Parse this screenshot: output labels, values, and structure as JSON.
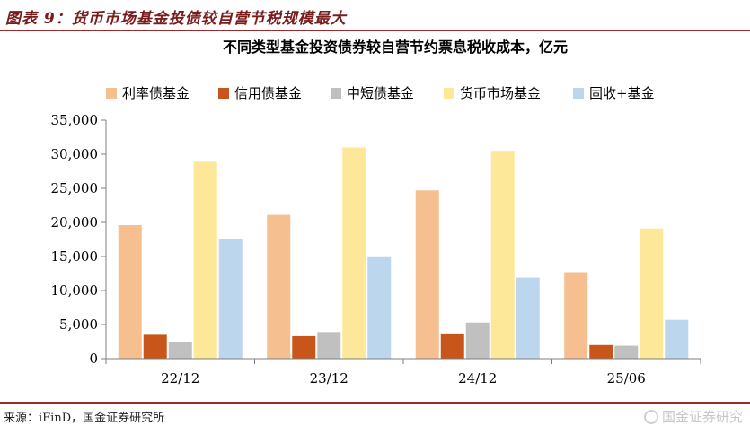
{
  "figure": {
    "label": "图表 9：货币市场基金投债较自营节税规模最大",
    "source": "来源：iFinD，国金证券研究所",
    "watermark": "国金证券研究",
    "rule_color": "#9b2b2b",
    "title_color": "#7a1c1c"
  },
  "chart_data": {
    "type": "bar",
    "title": "不同类型基金投资债券较自营节约票息税收成本，亿元",
    "categories": [
      "22/12",
      "23/12",
      "24/12",
      "25/06"
    ],
    "series": [
      {
        "name": "利率债基金",
        "color": "#f6bf90",
        "values": [
          19600,
          21100,
          24700,
          12700
        ]
      },
      {
        "name": "信用债基金",
        "color": "#c8561a",
        "values": [
          3500,
          3300,
          3700,
          2000
        ]
      },
      {
        "name": "中短债基金",
        "color": "#c0c0c0",
        "values": [
          2500,
          3900,
          5300,
          1900
        ]
      },
      {
        "name": "货币市场基金",
        "color": "#fde89a",
        "values": [
          28900,
          31000,
          30500,
          19100
        ]
      },
      {
        "name": "固收+基金",
        "color": "#bcd6ee",
        "values": [
          17500,
          14900,
          11900,
          5700
        ]
      }
    ],
    "yticks": [
      "0",
      "5,000",
      "10,000",
      "15,000",
      "20,000",
      "25,000",
      "30,000",
      "35,000"
    ],
    "ylim": [
      0,
      35000
    ],
    "grid": false,
    "legend": "top"
  }
}
